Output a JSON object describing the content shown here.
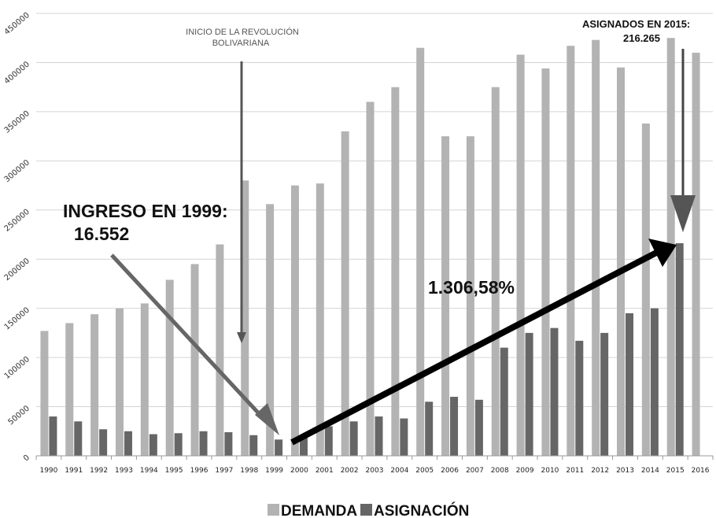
{
  "chart_data": {
    "type": "bar",
    "categories": [
      "1990",
      "1991",
      "1992",
      "1993",
      "1994",
      "1995",
      "1996",
      "1997",
      "1998",
      "1999",
      "2000",
      "2001",
      "2002",
      "2003",
      "2004",
      "2005",
      "2006",
      "2007",
      "2008",
      "2009",
      "2010",
      "2011",
      "2012",
      "2013",
      "2014",
      "2015",
      "2016"
    ],
    "series": [
      {
        "name": "DEMANDA",
        "color": "#b3b3b3",
        "values": [
          127000,
          135000,
          144000,
          150000,
          155000,
          179000,
          195000,
          215000,
          280000,
          256000,
          275000,
          277000,
          330000,
          360000,
          375000,
          415000,
          325000,
          325000,
          375000,
          408000,
          394000,
          417000,
          423000,
          395000,
          338000,
          425000,
          410000
        ]
      },
      {
        "name": "ASIGNACIÓN",
        "color": "#666666",
        "values": [
          40000,
          35000,
          27000,
          25000,
          22000,
          23000,
          25000,
          24000,
          21000,
          16552,
          21000,
          30000,
          35000,
          40000,
          38000,
          55000,
          60000,
          57000,
          110000,
          125000,
          130000,
          117000,
          125000,
          145000,
          150000,
          216265,
          null
        ]
      }
    ],
    "ylim": [
      0,
      450000
    ],
    "yticks": [
      "0",
      "50000",
      "100000",
      "150000",
      "200000",
      "250000",
      "300000",
      "350000",
      "400000",
      "450000"
    ],
    "grid": true,
    "legend_position": "bottom",
    "annotations": {
      "revolution": [
        "INICIO DE LA REVOLUCIÓN",
        "BOLIVARIANA"
      ],
      "ingreso": [
        "INGRESO EN 1999:",
        "16.552"
      ],
      "asignados": [
        "ASIGNADOS EN 2015:",
        "216.265"
      ],
      "growth": "1.306,58%"
    }
  }
}
